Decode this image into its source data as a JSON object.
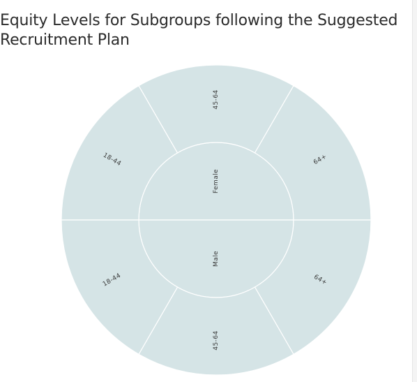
{
  "title": "Equity Levels for Subgroups following the Suggested Recruitment Plan",
  "chart_data": {
    "type": "sunburst",
    "title": "Equity Levels for Subgroups following the Suggested Recruitment Plan",
    "color": "#d5e4e6",
    "stroke_color": "#ffffff",
    "levels": [
      "sex",
      "age"
    ],
    "inner": [
      {
        "label": "Female",
        "value": 1
      },
      {
        "label": "Male",
        "value": 1
      }
    ],
    "outer": [
      {
        "label": "18-44",
        "parent": "Female",
        "value": 1
      },
      {
        "label": "45-64",
        "parent": "Female",
        "value": 1
      },
      {
        "label": "64+",
        "parent": "Female",
        "value": 1
      },
      {
        "label": "64+",
        "parent": "Male",
        "value": 1
      },
      {
        "label": "45-64",
        "parent": "Male",
        "value": 1
      },
      {
        "label": "18-44",
        "parent": "Male",
        "value": 1
      }
    ]
  }
}
